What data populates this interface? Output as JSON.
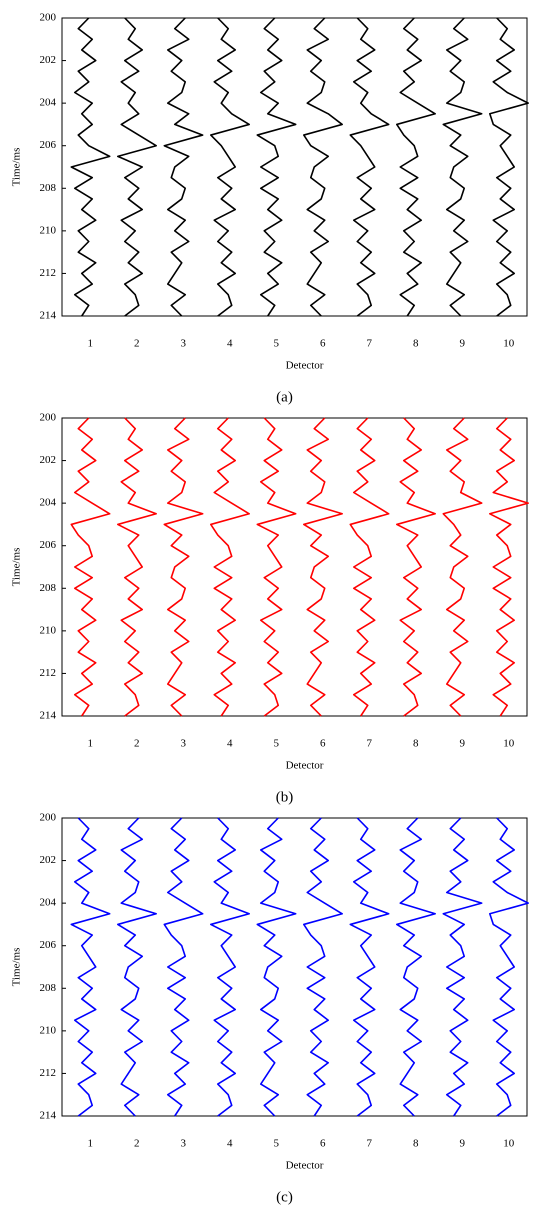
{
  "chart_data": [
    {
      "type": "wiggle",
      "caption": "(a)",
      "xlabel": "Detector",
      "ylabel": "Time/ms",
      "color": "#000000",
      "y_inverted": true,
      "categories": [
        "1",
        "2",
        "3",
        "4",
        "5",
        "6",
        "7",
        "8",
        "9",
        "10"
      ],
      "ylim": [
        200,
        214
      ],
      "yticks": [
        200,
        202,
        204,
        206,
        208,
        210,
        212,
        214
      ],
      "x": [
        200,
        200.5,
        201,
        201.5,
        202,
        202.5,
        203,
        203.5,
        204,
        204.5,
        205,
        205.5,
        206,
        206.5,
        207,
        207.5,
        208,
        208.5,
        209,
        209.5,
        210,
        210.5,
        211,
        211.5,
        212,
        212.5,
        213,
        213.5,
        214
      ],
      "series": [
        {
          "values": [
            0.1,
            -0.2,
            0.2,
            -0.1,
            0.3,
            -0.2,
            0.1,
            -0.3,
            0.2,
            -0.1,
            0.2,
            -0.2,
            0.1,
            0.7,
            -0.4,
            0.2,
            -0.3,
            0.2,
            -0.1,
            0.3,
            -0.2,
            0.1,
            -0.2,
            0.3,
            -0.1,
            0.2,
            -0.3,
            0.1,
            -0.1
          ]
        },
        {
          "values": [
            -0.2,
            0.1,
            -0.1,
            0.3,
            -0.2,
            0.2,
            -0.3,
            0.1,
            -0.1,
            0.2,
            -0.3,
            0.2,
            0.7,
            -0.4,
            0.3,
            -0.2,
            0.2,
            -0.1,
            0.3,
            -0.3,
            0.1,
            -0.2,
            0.2,
            -0.1,
            0.3,
            -0.2,
            0.1,
            0.2,
            -0.2
          ]
        },
        {
          "values": [
            0.2,
            -0.1,
            0.3,
            -0.3,
            0.1,
            -0.2,
            0.2,
            0.1,
            -0.3,
            0.3,
            -0.1,
            0.7,
            -0.4,
            0.3,
            -0.1,
            -0.2,
            0.2,
            0.1,
            -0.3,
            0.2,
            -0.1,
            0.3,
            -0.2,
            0.1,
            -0.1,
            -0.3,
            0.2,
            -0.2,
            0.1
          ]
        },
        {
          "values": [
            -0.2,
            0.1,
            -0.1,
            0.3,
            -0.2,
            0.2,
            -0.3,
            0.1,
            -0.1,
            0.2,
            0.7,
            -0.4,
            -0.1,
            0.1,
            0.3,
            -0.2,
            0.2,
            -0.1,
            0.3,
            -0.3,
            0.1,
            -0.2,
            0.2,
            -0.1,
            0.3,
            -0.2,
            0.1,
            0.2,
            -0.2
          ]
        },
        {
          "values": [
            0.1,
            -0.2,
            0.2,
            -0.1,
            0.3,
            -0.2,
            0.1,
            -0.3,
            0.2,
            -0.1,
            0.7,
            -0.4,
            0.1,
            0.2,
            -0.3,
            0.2,
            -0.3,
            0.2,
            -0.1,
            0.3,
            -0.2,
            0.1,
            -0.2,
            0.3,
            -0.1,
            0.2,
            -0.3,
            0.1,
            -0.1
          ]
        },
        {
          "values": [
            0.2,
            -0.1,
            0.3,
            -0.3,
            0.1,
            -0.2,
            0.2,
            0.1,
            -0.3,
            0.3,
            0.7,
            -0.4,
            -0.2,
            0.3,
            -0.1,
            -0.2,
            0.2,
            0.1,
            -0.3,
            0.2,
            -0.1,
            0.3,
            -0.2,
            0.1,
            -0.1,
            -0.3,
            0.2,
            -0.2,
            0.1
          ]
        },
        {
          "values": [
            -0.2,
            0.1,
            -0.1,
            0.3,
            -0.2,
            0.2,
            -0.3,
            0.1,
            -0.1,
            0.2,
            0.7,
            -0.4,
            -0.1,
            0.1,
            0.3,
            -0.2,
            0.2,
            -0.1,
            0.3,
            -0.3,
            0.1,
            -0.2,
            0.2,
            -0.1,
            0.3,
            -0.2,
            0.1,
            0.2,
            -0.2
          ]
        },
        {
          "values": [
            0.1,
            -0.2,
            0.2,
            -0.1,
            0.3,
            -0.2,
            0.1,
            -0.3,
            0.2,
            0.7,
            -0.4,
            -0.2,
            0.1,
            0.2,
            -0.3,
            0.2,
            -0.3,
            0.2,
            -0.1,
            0.3,
            -0.2,
            0.1,
            -0.2,
            0.3,
            -0.1,
            0.2,
            -0.3,
            0.1,
            -0.1
          ]
        },
        {
          "values": [
            0.2,
            -0.1,
            0.3,
            -0.3,
            0.1,
            -0.2,
            0.2,
            0.1,
            -0.3,
            0.7,
            -0.4,
            0.1,
            -0.2,
            0.3,
            -0.1,
            -0.2,
            0.2,
            0.1,
            -0.3,
            0.2,
            -0.1,
            0.3,
            -0.2,
            0.1,
            -0.1,
            -0.3,
            0.2,
            -0.2,
            0.1
          ]
        },
        {
          "values": [
            -0.2,
            0.1,
            -0.1,
            0.3,
            -0.2,
            0.2,
            -0.3,
            0.1,
            0.7,
            -0.4,
            -0.3,
            0.2,
            -0.1,
            0.1,
            0.3,
            -0.2,
            0.2,
            -0.1,
            0.3,
            -0.3,
            0.1,
            -0.2,
            0.2,
            -0.1,
            0.3,
            -0.2,
            0.1,
            0.2,
            -0.2
          ]
        }
      ]
    },
    {
      "type": "wiggle",
      "caption": "(b)",
      "xlabel": "Detector",
      "ylabel": "Time/ms",
      "color": "#ff0000",
      "y_inverted": true,
      "categories": [
        "1",
        "2",
        "3",
        "4",
        "5",
        "6",
        "7",
        "8",
        "9",
        "10"
      ],
      "ylim": [
        200,
        214
      ],
      "yticks": [
        200,
        202,
        204,
        206,
        208,
        210,
        212,
        214
      ],
      "x": [
        200,
        200.5,
        201,
        201.5,
        202,
        202.5,
        203,
        203.5,
        204,
        204.5,
        205,
        205.5,
        206,
        206.5,
        207,
        207.5,
        208,
        208.5,
        209,
        209.5,
        210,
        210.5,
        211,
        211.5,
        212,
        212.5,
        213,
        213.5,
        214
      ],
      "series": [
        {
          "values": [
            0.1,
            -0.2,
            0.2,
            -0.1,
            0.3,
            -0.2,
            0.1,
            -0.3,
            0.2,
            0.7,
            -0.4,
            -0.2,
            0.1,
            0.2,
            -0.3,
            0.2,
            -0.3,
            0.2,
            -0.1,
            0.3,
            -0.2,
            0.1,
            -0.2,
            0.3,
            -0.1,
            0.2,
            -0.3,
            0.1,
            -0.1
          ]
        },
        {
          "values": [
            -0.2,
            0.1,
            -0.1,
            0.3,
            -0.2,
            0.2,
            -0.3,
            0.1,
            -0.1,
            0.7,
            -0.4,
            0.2,
            -0.1,
            0.1,
            0.3,
            -0.2,
            0.2,
            -0.1,
            0.3,
            -0.3,
            0.1,
            -0.2,
            0.2,
            -0.1,
            0.3,
            -0.2,
            0.1,
            0.2,
            -0.2
          ]
        },
        {
          "values": [
            0.2,
            -0.1,
            0.3,
            -0.3,
            0.1,
            -0.2,
            0.2,
            0.1,
            -0.3,
            0.7,
            -0.4,
            0.1,
            -0.2,
            0.3,
            -0.1,
            -0.2,
            0.2,
            0.1,
            -0.3,
            0.2,
            -0.1,
            0.3,
            -0.2,
            0.1,
            -0.1,
            -0.3,
            0.2,
            -0.2,
            0.1
          ]
        },
        {
          "values": [
            0.1,
            -0.2,
            0.2,
            -0.1,
            0.3,
            -0.2,
            0.1,
            -0.3,
            0.2,
            0.7,
            -0.4,
            -0.2,
            0.1,
            0.2,
            -0.3,
            0.2,
            -0.3,
            0.2,
            -0.1,
            0.3,
            -0.2,
            0.1,
            -0.2,
            0.3,
            -0.1,
            0.2,
            -0.3,
            0.1,
            -0.1
          ]
        },
        {
          "values": [
            -0.2,
            0.1,
            -0.1,
            0.3,
            -0.2,
            0.2,
            -0.3,
            0.1,
            -0.1,
            0.7,
            -0.4,
            0.2,
            -0.1,
            0.1,
            0.3,
            -0.2,
            0.2,
            -0.1,
            0.3,
            -0.3,
            0.1,
            -0.2,
            0.2,
            -0.1,
            0.3,
            -0.2,
            0.1,
            0.2,
            -0.2
          ]
        },
        {
          "values": [
            0.2,
            -0.1,
            0.3,
            -0.3,
            0.1,
            -0.2,
            0.2,
            0.1,
            -0.3,
            0.7,
            -0.4,
            0.1,
            -0.2,
            0.3,
            -0.1,
            -0.2,
            0.2,
            0.1,
            -0.3,
            0.2,
            -0.1,
            0.3,
            -0.2,
            0.1,
            -0.1,
            -0.3,
            0.2,
            -0.2,
            0.1
          ]
        },
        {
          "values": [
            0.1,
            -0.2,
            0.2,
            -0.1,
            0.3,
            -0.2,
            0.1,
            -0.3,
            0.2,
            0.7,
            -0.4,
            -0.2,
            0.1,
            0.2,
            -0.3,
            0.2,
            -0.3,
            0.2,
            -0.1,
            0.3,
            -0.2,
            0.1,
            -0.2,
            0.3,
            -0.1,
            0.2,
            -0.3,
            0.1,
            -0.1
          ]
        },
        {
          "values": [
            -0.2,
            0.1,
            -0.1,
            0.3,
            -0.2,
            0.2,
            -0.3,
            0.1,
            -0.1,
            0.7,
            -0.4,
            0.2,
            -0.1,
            0.1,
            0.3,
            -0.2,
            0.2,
            -0.1,
            0.3,
            -0.3,
            0.1,
            -0.2,
            0.2,
            -0.1,
            0.3,
            -0.2,
            0.1,
            0.2,
            -0.2
          ]
        },
        {
          "values": [
            0.2,
            -0.1,
            0.3,
            -0.3,
            0.1,
            -0.2,
            0.2,
            0.1,
            0.7,
            -0.4,
            -0.1,
            0.1,
            -0.2,
            0.3,
            -0.1,
            -0.2,
            0.2,
            0.1,
            -0.3,
            0.2,
            -0.1,
            0.3,
            -0.2,
            0.1,
            -0.1,
            -0.3,
            0.2,
            -0.2,
            0.1
          ]
        },
        {
          "values": [
            0.1,
            -0.2,
            0.2,
            -0.1,
            0.3,
            -0.2,
            0.1,
            -0.3,
            0.7,
            -0.4,
            0.2,
            -0.2,
            0.1,
            0.2,
            -0.3,
            0.2,
            -0.3,
            0.2,
            -0.1,
            0.3,
            -0.2,
            0.1,
            -0.2,
            0.3,
            -0.1,
            0.2,
            -0.3,
            0.1,
            -0.1
          ]
        }
      ]
    },
    {
      "type": "wiggle",
      "caption": "(c)",
      "xlabel": "Detector",
      "ylabel": "Time/ms",
      "color": "#0000ff",
      "y_inverted": true,
      "categories": [
        "1",
        "2",
        "3",
        "4",
        "5",
        "6",
        "7",
        "8",
        "9",
        "10"
      ],
      "ylim": [
        200,
        214
      ],
      "yticks": [
        200,
        202,
        204,
        206,
        208,
        210,
        212,
        214
      ],
      "x": [
        200,
        200.5,
        201,
        201.5,
        202,
        202.5,
        203,
        203.5,
        204,
        204.5,
        205,
        205.5,
        206,
        206.5,
        207,
        207.5,
        208,
        208.5,
        209,
        209.5,
        210,
        210.5,
        211,
        211.5,
        212,
        212.5,
        213,
        213.5,
        214
      ],
      "series": [
        {
          "values": [
            -0.2,
            0.1,
            -0.1,
            0.3,
            -0.2,
            0.2,
            -0.3,
            0.1,
            -0.1,
            0.7,
            -0.4,
            0.2,
            -0.1,
            0.1,
            0.3,
            -0.2,
            0.2,
            -0.1,
            0.3,
            -0.3,
            0.1,
            -0.2,
            0.2,
            -0.1,
            0.3,
            -0.2,
            0.1,
            0.2,
            -0.2
          ]
        },
        {
          "values": [
            0.2,
            -0.1,
            0.3,
            -0.3,
            0.1,
            -0.2,
            0.2,
            0.1,
            -0.3,
            0.7,
            -0.4,
            0.1,
            -0.2,
            0.3,
            -0.1,
            -0.2,
            0.2,
            0.1,
            -0.3,
            0.2,
            -0.1,
            0.3,
            -0.2,
            0.1,
            -0.1,
            -0.3,
            0.2,
            -0.2,
            0.1
          ]
        },
        {
          "values": [
            0.1,
            -0.2,
            0.2,
            -0.1,
            0.3,
            -0.2,
            0.1,
            -0.3,
            0.2,
            0.7,
            -0.4,
            -0.2,
            0.1,
            0.2,
            -0.3,
            0.2,
            -0.3,
            0.2,
            -0.1,
            0.3,
            -0.2,
            0.1,
            -0.2,
            0.3,
            -0.1,
            0.2,
            -0.3,
            0.1,
            -0.1
          ]
        },
        {
          "values": [
            -0.2,
            0.1,
            -0.1,
            0.3,
            -0.2,
            0.2,
            -0.3,
            0.1,
            -0.1,
            0.7,
            -0.4,
            0.2,
            -0.1,
            0.1,
            0.3,
            -0.2,
            0.2,
            -0.1,
            0.3,
            -0.3,
            0.1,
            -0.2,
            0.2,
            -0.1,
            0.3,
            -0.2,
            0.1,
            0.2,
            -0.2
          ]
        },
        {
          "values": [
            0.2,
            -0.1,
            0.3,
            -0.3,
            0.1,
            -0.2,
            0.2,
            0.1,
            -0.3,
            0.7,
            -0.4,
            0.1,
            -0.2,
            0.3,
            -0.1,
            -0.2,
            0.2,
            0.1,
            -0.3,
            0.2,
            -0.1,
            0.3,
            -0.2,
            0.1,
            -0.1,
            -0.3,
            0.2,
            -0.2,
            0.1
          ]
        },
        {
          "values": [
            0.1,
            -0.2,
            0.2,
            -0.1,
            0.3,
            -0.2,
            0.1,
            -0.3,
            0.2,
            0.7,
            -0.4,
            -0.2,
            0.1,
            0.2,
            -0.3,
            0.2,
            -0.3,
            0.2,
            -0.1,
            0.3,
            -0.2,
            0.1,
            -0.2,
            0.3,
            -0.1,
            0.2,
            -0.3,
            0.1,
            -0.1
          ]
        },
        {
          "values": [
            -0.2,
            0.1,
            -0.1,
            0.3,
            -0.2,
            0.2,
            -0.3,
            0.1,
            -0.1,
            0.7,
            -0.4,
            0.2,
            -0.1,
            0.1,
            0.3,
            -0.2,
            0.2,
            -0.1,
            0.3,
            -0.3,
            0.1,
            -0.2,
            0.2,
            -0.1,
            0.3,
            -0.2,
            0.1,
            0.2,
            -0.2
          ]
        },
        {
          "values": [
            0.2,
            -0.1,
            0.3,
            -0.3,
            0.1,
            -0.2,
            0.2,
            0.1,
            -0.3,
            0.7,
            -0.4,
            0.1,
            -0.2,
            0.3,
            -0.1,
            -0.2,
            0.2,
            0.1,
            -0.3,
            0.2,
            -0.1,
            0.3,
            -0.2,
            0.1,
            -0.1,
            -0.3,
            0.2,
            -0.2,
            0.1
          ]
        },
        {
          "values": [
            0.1,
            -0.2,
            0.2,
            -0.1,
            0.3,
            -0.2,
            0.1,
            -0.3,
            0.7,
            -0.4,
            0.2,
            -0.2,
            0.1,
            0.2,
            -0.3,
            0.2,
            -0.3,
            0.2,
            -0.1,
            0.3,
            -0.2,
            0.1,
            -0.2,
            0.3,
            -0.1,
            0.2,
            -0.3,
            0.1,
            -0.1
          ]
        },
        {
          "values": [
            -0.2,
            0.1,
            -0.1,
            0.3,
            -0.2,
            0.2,
            -0.3,
            0.1,
            0.7,
            -0.4,
            -0.3,
            0.2,
            -0.1,
            0.1,
            0.3,
            -0.2,
            0.2,
            -0.1,
            0.3,
            -0.3,
            0.1,
            -0.2,
            0.2,
            -0.1,
            0.3,
            -0.2,
            0.1,
            0.2,
            -0.2
          ]
        }
      ]
    }
  ]
}
